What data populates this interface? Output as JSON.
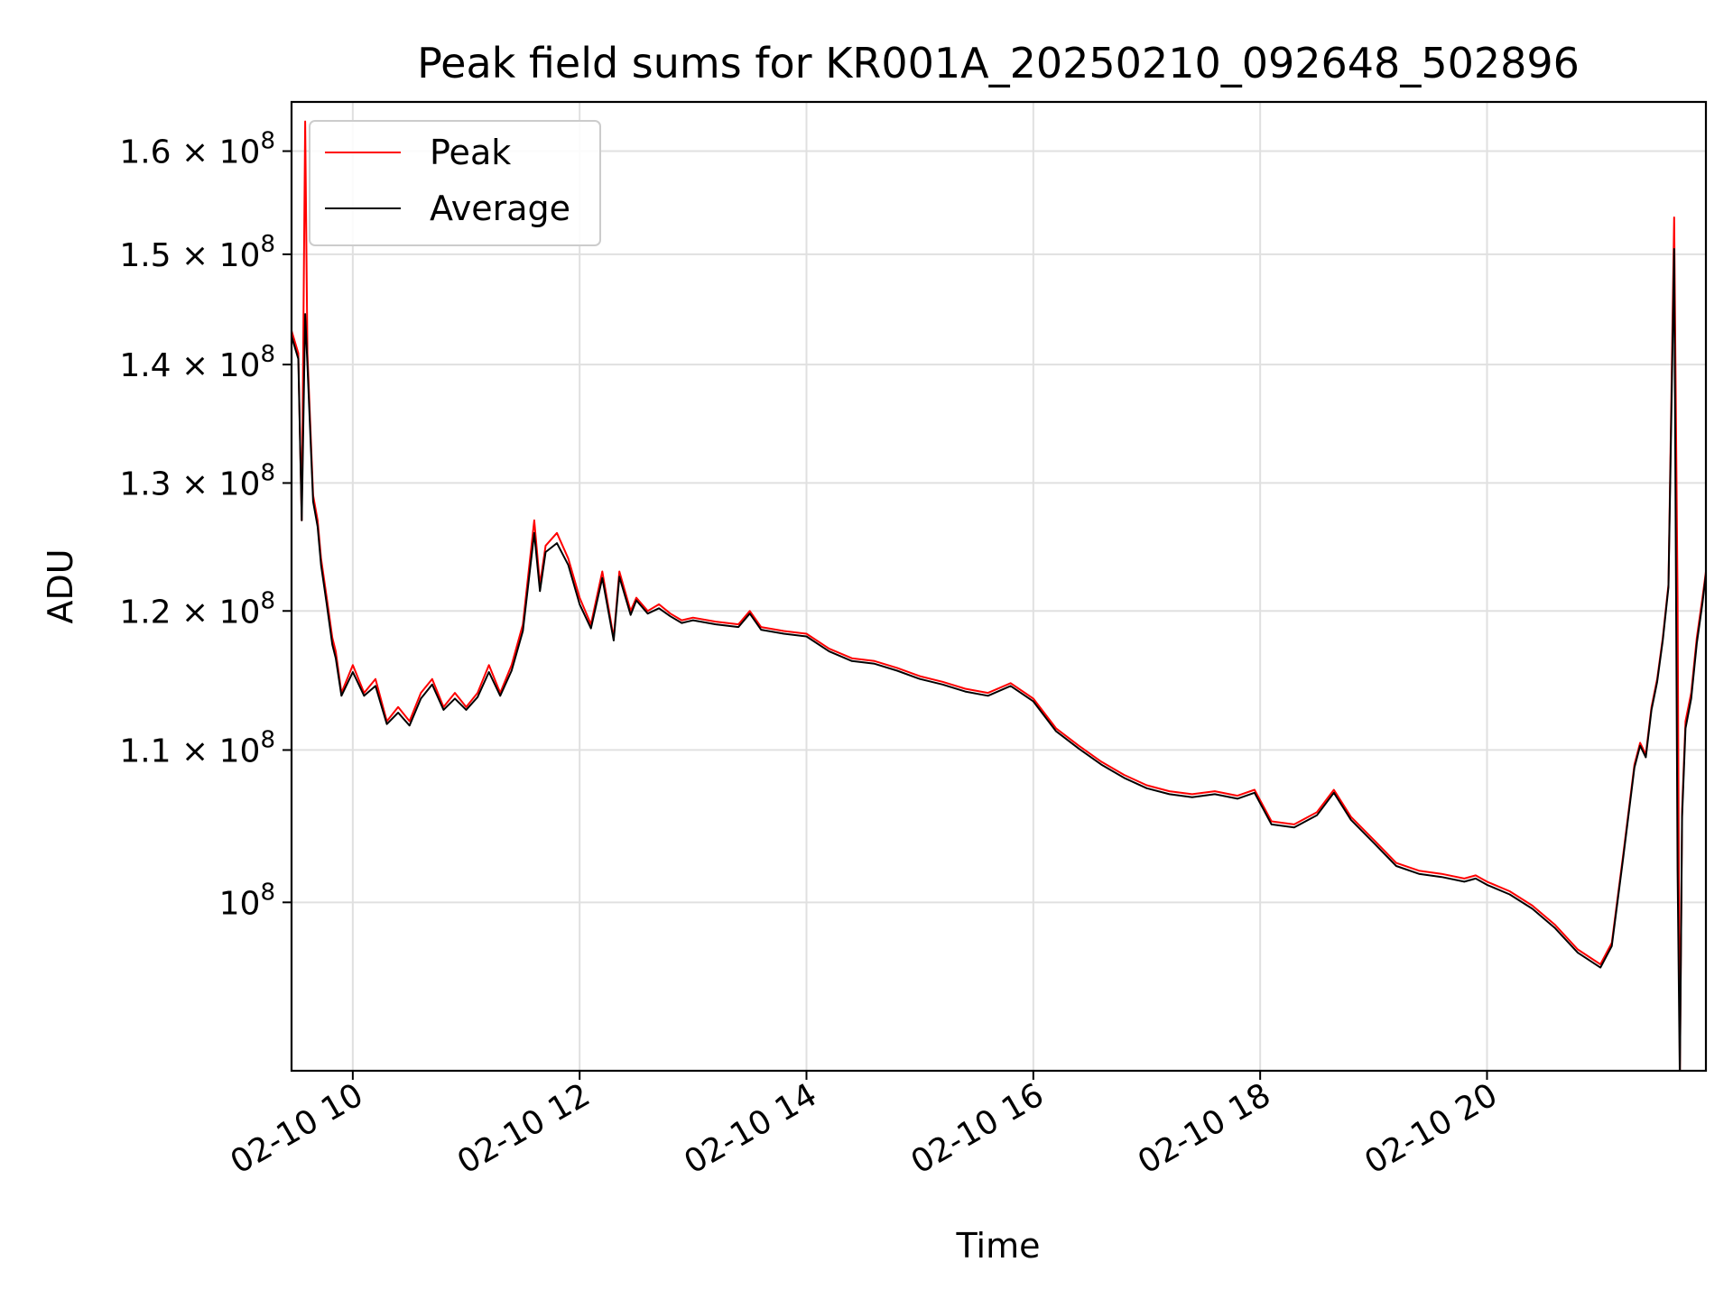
{
  "chart_data": {
    "type": "line",
    "title": "Peak field sums for KR001A_20250210_092648_502896",
    "xlabel": "Time",
    "ylabel": "ADU",
    "yscale": "log",
    "grid": true,
    "legend_position": "top-left",
    "xlim": [
      9.46,
      21.93
    ],
    "ylim": [
      90000000,
      165000000
    ],
    "x_ticks": [
      {
        "value": 10,
        "label": "02-10 10"
      },
      {
        "value": 12,
        "label": "02-10 12"
      },
      {
        "value": 14,
        "label": "02-10 14"
      },
      {
        "value": 16,
        "label": "02-10 16"
      },
      {
        "value": 18,
        "label": "02-10 18"
      },
      {
        "value": 20,
        "label": "02-10 20"
      }
    ],
    "y_ticks": [
      {
        "value": 100000000,
        "mantissa": "",
        "exponent": "8"
      },
      {
        "value": 110000000,
        "mantissa": "1.1",
        "exponent": "8"
      },
      {
        "value": 120000000,
        "mantissa": "1.2",
        "exponent": "8"
      },
      {
        "value": 130000000,
        "mantissa": "1.3",
        "exponent": "8"
      },
      {
        "value": 140000000,
        "mantissa": "1.4",
        "exponent": "8"
      },
      {
        "value": 150000000,
        "mantissa": "1.5",
        "exponent": "8"
      },
      {
        "value": 160000000,
        "mantissa": "1.6",
        "exponent": "8"
      }
    ],
    "times_x_label": "× 10",
    "series": [
      {
        "name": "Peak",
        "color": "#ff0000",
        "x": [
          9.46,
          9.52,
          9.55,
          9.58,
          9.6,
          9.65,
          9.69,
          9.72,
          9.77,
          9.82,
          9.85,
          9.9,
          10.0,
          10.1,
          10.2,
          10.3,
          10.4,
          10.5,
          10.6,
          10.7,
          10.8,
          10.9,
          11.0,
          11.1,
          11.2,
          11.3,
          11.4,
          11.5,
          11.6,
          11.65,
          11.7,
          11.8,
          11.9,
          12.0,
          12.1,
          12.2,
          12.3,
          12.35,
          12.45,
          12.5,
          12.6,
          12.7,
          12.8,
          12.9,
          13.0,
          13.2,
          13.4,
          13.5,
          13.6,
          13.8,
          14.0,
          14.2,
          14.4,
          14.6,
          14.8,
          15.0,
          15.2,
          15.4,
          15.6,
          15.8,
          16.0,
          16.2,
          16.4,
          16.6,
          16.8,
          17.0,
          17.2,
          17.4,
          17.6,
          17.8,
          17.95,
          18.1,
          18.3,
          18.5,
          18.65,
          18.8,
          19.0,
          19.2,
          19.4,
          19.6,
          19.8,
          19.9,
          20.0,
          20.2,
          20.4,
          20.6,
          20.8,
          21.0,
          21.1,
          21.2,
          21.3,
          21.35,
          21.4,
          21.45,
          21.5,
          21.55,
          21.6,
          21.65,
          21.68,
          21.7,
          21.72,
          21.75,
          21.8,
          21.85,
          21.9,
          21.93
        ],
        "y": [
          143000000,
          141000000,
          127000000,
          163000000,
          141000000,
          129000000,
          127000000,
          124000000,
          121000000,
          118000000,
          117000000,
          114000000,
          116000000,
          114000000,
          115000000,
          112000000,
          113000000,
          112000000,
          114000000,
          115000000,
          113000000,
          114000000,
          113000000,
          114000000,
          116000000,
          114000000,
          116000000,
          119000000,
          127000000,
          122000000,
          125000000,
          126000000,
          124000000,
          121000000,
          119000000,
          123000000,
          118000000,
          123000000,
          120000000,
          121000000,
          120000000,
          120500000,
          119800000,
          119300000,
          119500000,
          119200000,
          119000000,
          120000000,
          118800000,
          118500000,
          118300000,
          117200000,
          116500000,
          116300000,
          115800000,
          115200000,
          114800000,
          114300000,
          114000000,
          114700000,
          113600000,
          111500000,
          110300000,
          109200000,
          108300000,
          107600000,
          107200000,
          107000000,
          107200000,
          106900000,
          107300000,
          105200000,
          105000000,
          105800000,
          107300000,
          105500000,
          104000000,
          102500000,
          102000000,
          101800000,
          101500000,
          101700000,
          101300000,
          100700000,
          99800000,
          98600000,
          97100000,
          96200000,
          97500000,
          103000000,
          109000000,
          110500000,
          109700000,
          113000000,
          115000000,
          118000000,
          122000000,
          153500000,
          121000000,
          89500000,
          106000000,
          112000000,
          114000000,
          118000000,
          121000000,
          123000000
        ]
      },
      {
        "name": "Average",
        "color": "#000000",
        "x": [
          9.46,
          9.52,
          9.55,
          9.58,
          9.6,
          9.65,
          9.69,
          9.72,
          9.77,
          9.82,
          9.85,
          9.9,
          10.0,
          10.1,
          10.2,
          10.3,
          10.4,
          10.5,
          10.6,
          10.7,
          10.8,
          10.9,
          11.0,
          11.1,
          11.2,
          11.3,
          11.4,
          11.5,
          11.6,
          11.65,
          11.7,
          11.8,
          11.9,
          12.0,
          12.1,
          12.2,
          12.3,
          12.35,
          12.45,
          12.5,
          12.6,
          12.7,
          12.8,
          12.9,
          13.0,
          13.2,
          13.4,
          13.5,
          13.6,
          13.8,
          14.0,
          14.2,
          14.4,
          14.6,
          14.8,
          15.0,
          15.2,
          15.4,
          15.6,
          15.8,
          16.0,
          16.2,
          16.4,
          16.6,
          16.8,
          17.0,
          17.2,
          17.4,
          17.6,
          17.8,
          17.95,
          18.1,
          18.3,
          18.5,
          18.65,
          18.8,
          19.0,
          19.2,
          19.4,
          19.6,
          19.8,
          19.9,
          20.0,
          20.2,
          20.4,
          20.6,
          20.8,
          21.0,
          21.1,
          21.2,
          21.3,
          21.35,
          21.4,
          21.45,
          21.5,
          21.55,
          21.6,
          21.65,
          21.68,
          21.7,
          21.72,
          21.75,
          21.8,
          21.85,
          21.9,
          21.93
        ],
        "y": [
          142500000,
          140500000,
          127000000,
          144500000,
          140000000,
          128500000,
          126500000,
          123500000,
          120500000,
          117500000,
          116500000,
          113800000,
          115500000,
          113800000,
          114500000,
          111800000,
          112600000,
          111700000,
          113600000,
          114600000,
          112800000,
          113600000,
          112800000,
          113700000,
          115500000,
          113800000,
          115600000,
          118500000,
          126000000,
          121500000,
          124500000,
          125200000,
          123500000,
          120500000,
          118700000,
          122500000,
          117800000,
          122600000,
          119700000,
          120800000,
          119800000,
          120200000,
          119600000,
          119100000,
          119300000,
          119000000,
          118800000,
          119800000,
          118600000,
          118300000,
          118100000,
          117000000,
          116300000,
          116100000,
          115600000,
          115000000,
          114600000,
          114100000,
          113800000,
          114500000,
          113400000,
          111300000,
          110100000,
          109000000,
          108100000,
          107400000,
          107000000,
          106800000,
          107000000,
          106700000,
          107100000,
          105000000,
          104800000,
          105600000,
          107100000,
          105300000,
          103800000,
          102300000,
          101800000,
          101600000,
          101300000,
          101500000,
          101100000,
          100500000,
          99600000,
          98400000,
          96900000,
          96000000,
          97300000,
          102800000,
          108800000,
          110300000,
          109500000,
          112800000,
          114800000,
          117800000,
          121800000,
          150500000,
          102000000,
          89500000,
          105500000,
          111500000,
          113600000,
          117600000,
          120600000,
          122800000
        ]
      }
    ]
  }
}
